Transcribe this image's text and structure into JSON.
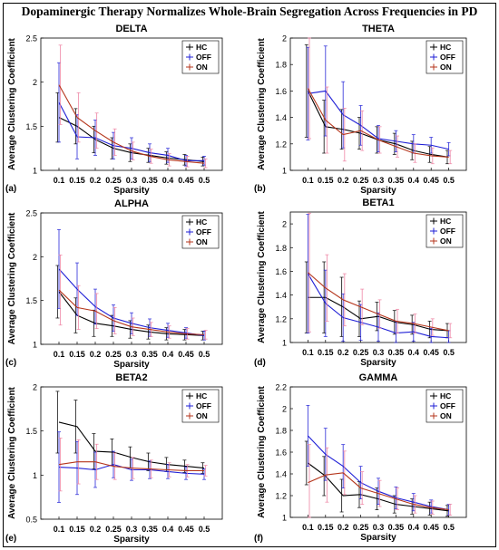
{
  "figure": {
    "title": "Dopaminergic Therapy Normalizes Whole-Brain Segregation Across Frequencies in PD"
  },
  "colors": {
    "HC": "#000000",
    "OFF": "#1f1fd6",
    "ON": "#b5361c",
    "ON_err": "#ee7fa0"
  },
  "chart_data": [
    {
      "type": "line",
      "panel": "(a)",
      "title": "DELTA",
      "xlabel": "Sparsity",
      "ylabel": "Average Clustering Coefficient",
      "x": [
        0.1,
        0.15,
        0.2,
        0.25,
        0.3,
        0.35,
        0.4,
        0.45,
        0.5
      ],
      "xlim": [
        0.05,
        0.55
      ],
      "ylim": [
        1,
        2.5
      ],
      "yticks": [
        1,
        1.5,
        2,
        2.5
      ],
      "ytick_labels": [
        "1",
        "1.5",
        "2",
        "2.5"
      ],
      "legend_position": "top-right",
      "series": [
        {
          "name": "HC",
          "values": [
            1.6,
            1.5,
            1.35,
            1.25,
            1.2,
            1.17,
            1.14,
            1.12,
            1.1
          ],
          "errors": [
            0.28,
            0.2,
            0.15,
            0.12,
            0.1,
            0.08,
            0.07,
            0.06,
            0.05
          ]
        },
        {
          "name": "OFF",
          "values": [
            1.77,
            1.38,
            1.37,
            1.28,
            1.25,
            1.2,
            1.17,
            1.11,
            1.11
          ],
          "errors": [
            0.45,
            0.25,
            0.2,
            0.15,
            0.12,
            0.1,
            0.08,
            0.06,
            0.05
          ]
        },
        {
          "name": "ON",
          "values": [
            1.97,
            1.6,
            1.45,
            1.32,
            1.22,
            1.16,
            1.12,
            1.1,
            1.08
          ],
          "errors": [
            0.45,
            0.28,
            0.2,
            0.15,
            0.1,
            0.08,
            0.07,
            0.06,
            0.05
          ]
        }
      ]
    },
    {
      "type": "line",
      "panel": "(b)",
      "title": "THETA",
      "xlabel": "Sparsity",
      "ylabel": "Average Clustering Coefficient",
      "x": [
        0.1,
        0.15,
        0.2,
        0.25,
        0.3,
        0.35,
        0.4,
        0.45,
        0.5
      ],
      "xlim": [
        0.05,
        0.55
      ],
      "ylim": [
        1,
        2
      ],
      "yticks": [
        1,
        1.2,
        1.4,
        1.6,
        1.8,
        2
      ],
      "ytick_labels": [
        "1",
        "1.2",
        "1.4",
        "1.6",
        "1.8",
        "2"
      ],
      "legend_position": "top-right",
      "series": [
        {
          "name": "HC",
          "values": [
            1.6,
            1.33,
            1.31,
            1.28,
            1.23,
            1.2,
            1.15,
            1.12,
            1.1
          ],
          "errors": [
            0.35,
            0.2,
            0.15,
            0.12,
            0.1,
            0.08,
            0.07,
            0.06,
            0.05
          ]
        },
        {
          "name": "OFF",
          "values": [
            1.58,
            1.6,
            1.42,
            1.34,
            1.24,
            1.22,
            1.2,
            1.19,
            1.16
          ],
          "errors": [
            0.35,
            0.34,
            0.25,
            0.15,
            0.1,
            0.08,
            0.07,
            0.06,
            0.05
          ]
        },
        {
          "name": "ON",
          "values": [
            1.62,
            1.38,
            1.27,
            1.3,
            1.23,
            1.18,
            1.13,
            1.11,
            1.1
          ],
          "errors": [
            0.38,
            0.25,
            0.2,
            0.15,
            0.1,
            0.08,
            0.07,
            0.06,
            0.05
          ]
        }
      ]
    },
    {
      "type": "line",
      "panel": "(c)",
      "title": "ALPHA",
      "xlabel": "Sparsity",
      "ylabel": "Average Clustering Coefficient",
      "x": [
        0.1,
        0.15,
        0.2,
        0.25,
        0.3,
        0.35,
        0.4,
        0.45,
        0.5
      ],
      "xlim": [
        0.05,
        0.55
      ],
      "ylim": [
        1,
        2.5
      ],
      "yticks": [
        1,
        1.5,
        2,
        2.5
      ],
      "ytick_labels": [
        "1",
        "1.5",
        "2",
        "2.5"
      ],
      "legend_position": "top-right",
      "series": [
        {
          "name": "HC",
          "values": [
            1.6,
            1.33,
            1.24,
            1.21,
            1.17,
            1.14,
            1.12,
            1.11,
            1.1
          ],
          "errors": [
            0.3,
            0.2,
            0.15,
            0.12,
            0.1,
            0.08,
            0.07,
            0.06,
            0.05
          ]
        },
        {
          "name": "OFF",
          "values": [
            1.86,
            1.63,
            1.43,
            1.3,
            1.24,
            1.19,
            1.16,
            1.13,
            1.1
          ],
          "errors": [
            0.45,
            0.3,
            0.2,
            0.15,
            0.12,
            0.1,
            0.08,
            0.06,
            0.05
          ]
        },
        {
          "name": "ON",
          "values": [
            1.62,
            1.42,
            1.38,
            1.27,
            1.2,
            1.17,
            1.14,
            1.12,
            1.11
          ],
          "errors": [
            0.4,
            0.25,
            0.2,
            0.15,
            0.1,
            0.08,
            0.07,
            0.06,
            0.05
          ]
        }
      ]
    },
    {
      "type": "line",
      "panel": "(d)",
      "title": "BETA1",
      "xlabel": "Sparsity",
      "ylabel": "Average Clustering Coefficient",
      "x": [
        0.1,
        0.15,
        0.2,
        0.25,
        0.3,
        0.35,
        0.4,
        0.45,
        0.5
      ],
      "xlim": [
        0.05,
        0.55
      ],
      "ylim": [
        1,
        2.1
      ],
      "yticks": [
        1,
        1.2,
        1.4,
        1.6,
        1.8,
        2
      ],
      "ytick_labels": [
        "1",
        "1.2",
        "1.4",
        "1.6",
        "1.8",
        "2"
      ],
      "legend_position": "top-right",
      "series": [
        {
          "name": "HC",
          "values": [
            1.38,
            1.38,
            1.3,
            1.2,
            1.22,
            1.17,
            1.15,
            1.11,
            1.1
          ],
          "errors": [
            0.3,
            0.3,
            0.25,
            0.15,
            0.12,
            0.1,
            0.08,
            0.07,
            0.06
          ]
        },
        {
          "name": "OFF",
          "values": [
            1.58,
            1.33,
            1.21,
            1.17,
            1.13,
            1.08,
            1.09,
            1.05,
            1.04
          ],
          "errors": [
            0.5,
            0.28,
            0.2,
            0.15,
            0.12,
            0.1,
            0.08,
            0.07,
            0.06
          ]
        },
        {
          "name": "ON",
          "values": [
            1.59,
            1.46,
            1.36,
            1.3,
            1.24,
            1.18,
            1.16,
            1.13,
            1.1
          ],
          "errors": [
            0.5,
            0.28,
            0.22,
            0.15,
            0.12,
            0.1,
            0.08,
            0.07,
            0.06
          ]
        }
      ]
    },
    {
      "type": "line",
      "panel": "(e)",
      "title": "BETA2",
      "xlabel": "Sparsity",
      "ylabel": "Average Clustering Coefficient",
      "x": [
        0.1,
        0.15,
        0.2,
        0.25,
        0.3,
        0.35,
        0.4,
        0.45,
        0.5
      ],
      "xlim": [
        0.05,
        0.55
      ],
      "ylim": [
        0.5,
        2
      ],
      "yticks": [
        0.5,
        1,
        1.5,
        2
      ],
      "ytick_labels": [
        "0.5",
        "1",
        "1.5",
        "2"
      ],
      "legend_position": "top-right",
      "series": [
        {
          "name": "HC",
          "values": [
            1.6,
            1.55,
            1.27,
            1.26,
            1.2,
            1.15,
            1.12,
            1.1,
            1.08
          ],
          "errors": [
            0.35,
            0.3,
            0.2,
            0.15,
            0.12,
            0.1,
            0.08,
            0.07,
            0.06
          ]
        },
        {
          "name": "OFF",
          "values": [
            1.09,
            1.08,
            1.06,
            1.12,
            1.06,
            1.06,
            1.04,
            1.02,
            1.01
          ],
          "errors": [
            0.4,
            0.3,
            0.2,
            0.15,
            0.12,
            0.1,
            0.08,
            0.07,
            0.06
          ]
        },
        {
          "name": "ON",
          "values": [
            1.12,
            1.15,
            1.15,
            1.1,
            1.08,
            1.07,
            1.06,
            1.05,
            1.05
          ],
          "errors": [
            0.3,
            0.25,
            0.2,
            0.15,
            0.12,
            0.1,
            0.08,
            0.07,
            0.06
          ]
        }
      ]
    },
    {
      "type": "line",
      "panel": "(f)",
      "title": "GAMMA",
      "xlabel": "Sparsity",
      "ylabel": "Average Clustering Coefficient",
      "x": [
        0.1,
        0.15,
        0.2,
        0.25,
        0.3,
        0.35,
        0.4,
        0.45,
        0.5
      ],
      "xlim": [
        0.05,
        0.55
      ],
      "ylim": [
        1,
        2.2
      ],
      "yticks": [
        1,
        1.2,
        1.4,
        1.6,
        1.8,
        2,
        2.2
      ],
      "ytick_labels": [
        "1",
        "1.2",
        "1.4",
        "1.6",
        "1.8",
        "2",
        "2.2"
      ],
      "legend_position": "top-right",
      "series": [
        {
          "name": "HC",
          "values": [
            1.5,
            1.38,
            1.2,
            1.21,
            1.17,
            1.12,
            1.1,
            1.08,
            1.06
          ],
          "errors": [
            0.2,
            0.18,
            0.15,
            0.12,
            0.1,
            0.08,
            0.07,
            0.06,
            0.05
          ]
        },
        {
          "name": "OFF",
          "values": [
            1.75,
            1.58,
            1.47,
            1.32,
            1.24,
            1.18,
            1.14,
            1.1,
            1.07
          ],
          "errors": [
            0.28,
            0.24,
            0.2,
            0.15,
            0.12,
            0.1,
            0.08,
            0.06,
            0.05
          ]
        },
        {
          "name": "ON",
          "values": [
            1.32,
            1.39,
            1.41,
            1.27,
            1.22,
            1.17,
            1.12,
            1.09,
            1.07
          ],
          "errors": [
            0.35,
            0.25,
            0.2,
            0.15,
            0.12,
            0.1,
            0.08,
            0.06,
            0.05
          ]
        }
      ]
    }
  ]
}
